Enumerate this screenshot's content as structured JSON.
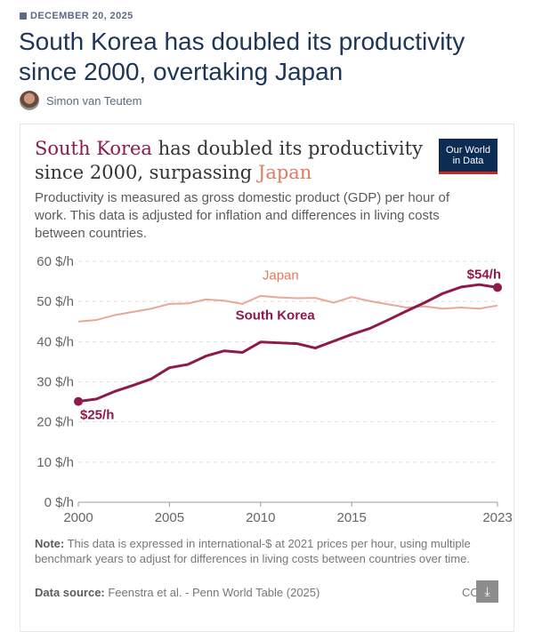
{
  "article": {
    "date": "DECEMBER 20, 2025",
    "title": "South Korea has doubled its productivity since 2000, overtaking Japan",
    "author": "Simon van Teutem"
  },
  "card": {
    "title_kor": "South Korea",
    "title_mid": " has doubled its productivity since 2000, surpassing ",
    "title_jap": "Japan",
    "logo_text": "Our World in Data",
    "subtitle": "Productivity is measured as gross domestic product (GDP) per hour of work. This data is adjusted for inflation and differences in living costs between countries.",
    "note_label": "Note:",
    "note": " This data is expressed in international-$ at 2021 prices per hour, using multiple benchmark years to adjust for differences in living costs between countries over time.",
    "source_label": "Data source:",
    "source": " Feenstra et al. - Penn World Table (2025)",
    "license": "CC",
    "download_icon": "download-icon"
  },
  "chart_data": {
    "type": "line",
    "ylim": [
      0,
      60
    ],
    "yticks": [
      0,
      10,
      20,
      30,
      40,
      50,
      60
    ],
    "ytick_labels": [
      "0 $/h",
      "10 $/h",
      "20 $/h",
      "30 $/h",
      "40 $/h",
      "50 $/h",
      "60 $/h"
    ],
    "xlim": [
      2000,
      2023
    ],
    "xticks": [
      2000,
      2005,
      2010,
      2015,
      2023
    ],
    "xtick_labels": [
      "2000",
      "2005",
      "2010",
      "2015",
      "2023"
    ],
    "grid": "horizontal dashed",
    "x": [
      2000,
      2001,
      2002,
      2003,
      2004,
      2005,
      2006,
      2007,
      2008,
      2009,
      2010,
      2011,
      2012,
      2013,
      2014,
      2015,
      2016,
      2017,
      2018,
      2019,
      2020,
      2021,
      2022,
      2023
    ],
    "series": [
      {
        "name": "Japan",
        "color": "#e8a898",
        "label_color": "#e07b5f",
        "values": [
          45.0,
          45.4,
          46.6,
          47.4,
          48.2,
          49.4,
          49.5,
          50.5,
          50.2,
          49.4,
          51.4,
          51.0,
          50.8,
          50.9,
          49.7,
          51.1,
          50.1,
          49.3,
          48.5,
          48.8,
          48.2,
          48.5,
          48.2,
          49.0
        ]
      },
      {
        "name": "South Korea",
        "color": "#8c1a4a",
        "label_color": "#8c1a4a",
        "values": [
          25.1,
          25.7,
          27.6,
          29.1,
          30.7,
          33.5,
          34.3,
          36.4,
          37.7,
          37.3,
          39.9,
          39.7,
          39.5,
          38.4,
          40.1,
          41.8,
          43.3,
          45.4,
          47.6,
          49.7,
          52.0,
          53.6,
          54.2,
          53.5
        ],
        "start_label": "$25/h",
        "end_label": "$54/h"
      }
    ]
  }
}
